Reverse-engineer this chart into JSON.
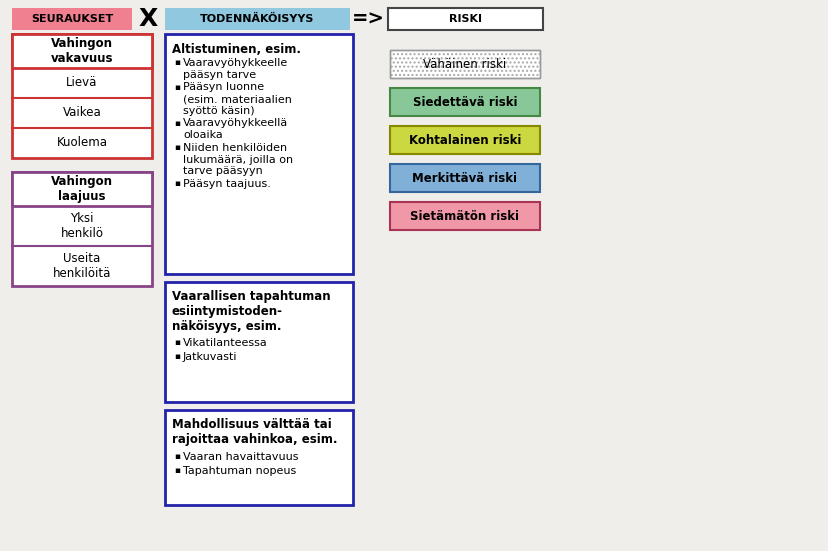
{
  "bg_color": "#f0eeeb",
  "seuraukset_header": "SEURAUKSET",
  "seuraukset_header_bg": "#f08090",
  "todennakoisyys_header": "TODENNÄKÖISYYS",
  "todennakoisyys_header_bg": "#90c8e0",
  "riski_header": "RISKI",
  "vahingon_vakavuus_title": "Vahingon\nvakavuus",
  "vahingon_vakavuus_items": [
    "Lievä",
    "Vaikea",
    "Kuolema"
  ],
  "vahingon_laajuus_title": "Vahingon\nlaajuus",
  "vahingon_laajuus_items": [
    "Yksi\nhenkilö",
    "Useita\nhenkilöitä"
  ],
  "left_box_border_vakavuus": "#cc3333",
  "left_box_border_laajuus": "#884488",
  "box1_title": "Altistuminen, esim.",
  "box1_bullets": [
    "Vaaravyöhykkeelle\npääsyn tarve",
    "Pääsyn luonne\n(esim. materiaalien\nsyöttö käsin)",
    "Vaaravyöhykkeellä\noloaika",
    "Niiden henkilöiden\nlukumäärä, joilla on\ntarve pääsyyn",
    "Pääsyn taajuus."
  ],
  "box2_title": "Vaarallisen tapahtuman\nesiintymistoden-\nnäköisyys, esim.",
  "box2_bullets": [
    "Vikatilanteessa",
    "Jatkuvasti"
  ],
  "box3_title": "Mahdollisuus välttää tai\nrajoittaa vahinkoa, esim.",
  "box3_bullets": [
    "Vaaran havaittavuus",
    "Tapahtuman nopeus"
  ],
  "blue_box_border": "#2222aa",
  "risk_labels": [
    "Vähäinen riski",
    "Siedettävä riski",
    "Kohtalainen riski",
    "Merkittävä riski",
    "Sietämätön riski"
  ],
  "risk_colors": [
    "#ffffff",
    "#88c898",
    "#ccd840",
    "#80b0d8",
    "#f098a8"
  ],
  "risk_text_bold": [
    false,
    true,
    true,
    true,
    true
  ]
}
